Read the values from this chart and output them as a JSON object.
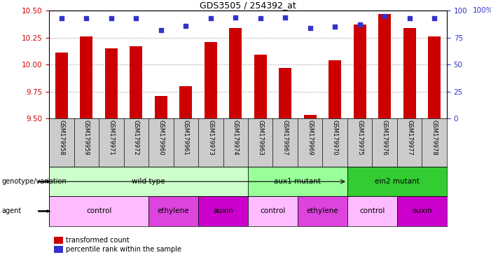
{
  "title": "GDS3505 / 254392_at",
  "samples": [
    "GSM179958",
    "GSM179959",
    "GSM179971",
    "GSM179972",
    "GSM179960",
    "GSM179961",
    "GSM179973",
    "GSM179974",
    "GSM179963",
    "GSM179967",
    "GSM179969",
    "GSM179970",
    "GSM179975",
    "GSM179976",
    "GSM179977",
    "GSM179978"
  ],
  "bar_values": [
    10.11,
    10.26,
    10.15,
    10.17,
    9.71,
    9.8,
    10.21,
    10.34,
    10.09,
    9.97,
    9.53,
    10.04,
    10.37,
    10.47,
    10.34,
    10.26
  ],
  "percentile_values": [
    93,
    93,
    93,
    93,
    82,
    86,
    93,
    94,
    93,
    94,
    84,
    85,
    87,
    95,
    93,
    93
  ],
  "ymin": 9.5,
  "ymax": 10.5,
  "yticks": [
    9.5,
    9.75,
    10.0,
    10.25,
    10.5
  ],
  "right_yticks": [
    0,
    25,
    50,
    75,
    100
  ],
  "right_ylabel": "100%",
  "bar_color": "#cc0000",
  "percentile_color": "#3333cc",
  "bar_width": 0.5,
  "genotype_groups": [
    {
      "label": "wild type",
      "start": 0,
      "end": 7,
      "color": "#ccffcc"
    },
    {
      "label": "aux1 mutant",
      "start": 8,
      "end": 11,
      "color": "#99ff99"
    },
    {
      "label": "ein2 mutant",
      "start": 12,
      "end": 15,
      "color": "#33cc33"
    }
  ],
  "agent_groups": [
    {
      "label": "control",
      "start": 0,
      "end": 3,
      "color": "#ffbbff"
    },
    {
      "label": "ethylene",
      "start": 4,
      "end": 5,
      "color": "#dd44dd"
    },
    {
      "label": "auxin",
      "start": 6,
      "end": 7,
      "color": "#cc00cc"
    },
    {
      "label": "control",
      "start": 8,
      "end": 9,
      "color": "#ffbbff"
    },
    {
      "label": "ethylene",
      "start": 10,
      "end": 11,
      "color": "#dd44dd"
    },
    {
      "label": "control",
      "start": 12,
      "end": 13,
      "color": "#ffbbff"
    },
    {
      "label": "auxin",
      "start": 14,
      "end": 15,
      "color": "#cc00cc"
    }
  ],
  "legend_items": [
    {
      "label": "transformed count",
      "color": "#cc0000"
    },
    {
      "label": "percentile rank within the sample",
      "color": "#3333cc"
    }
  ],
  "bar_color_left": "#cc0000",
  "right_ylabel_color": "#3333cc",
  "background_color": "#ffffff",
  "grid_color": "#888888",
  "genotype_row_label": "genotype/variation",
  "agent_row_label": "agent",
  "sample_bg_color": "#cccccc",
  "tick_fontsize": 7.5
}
